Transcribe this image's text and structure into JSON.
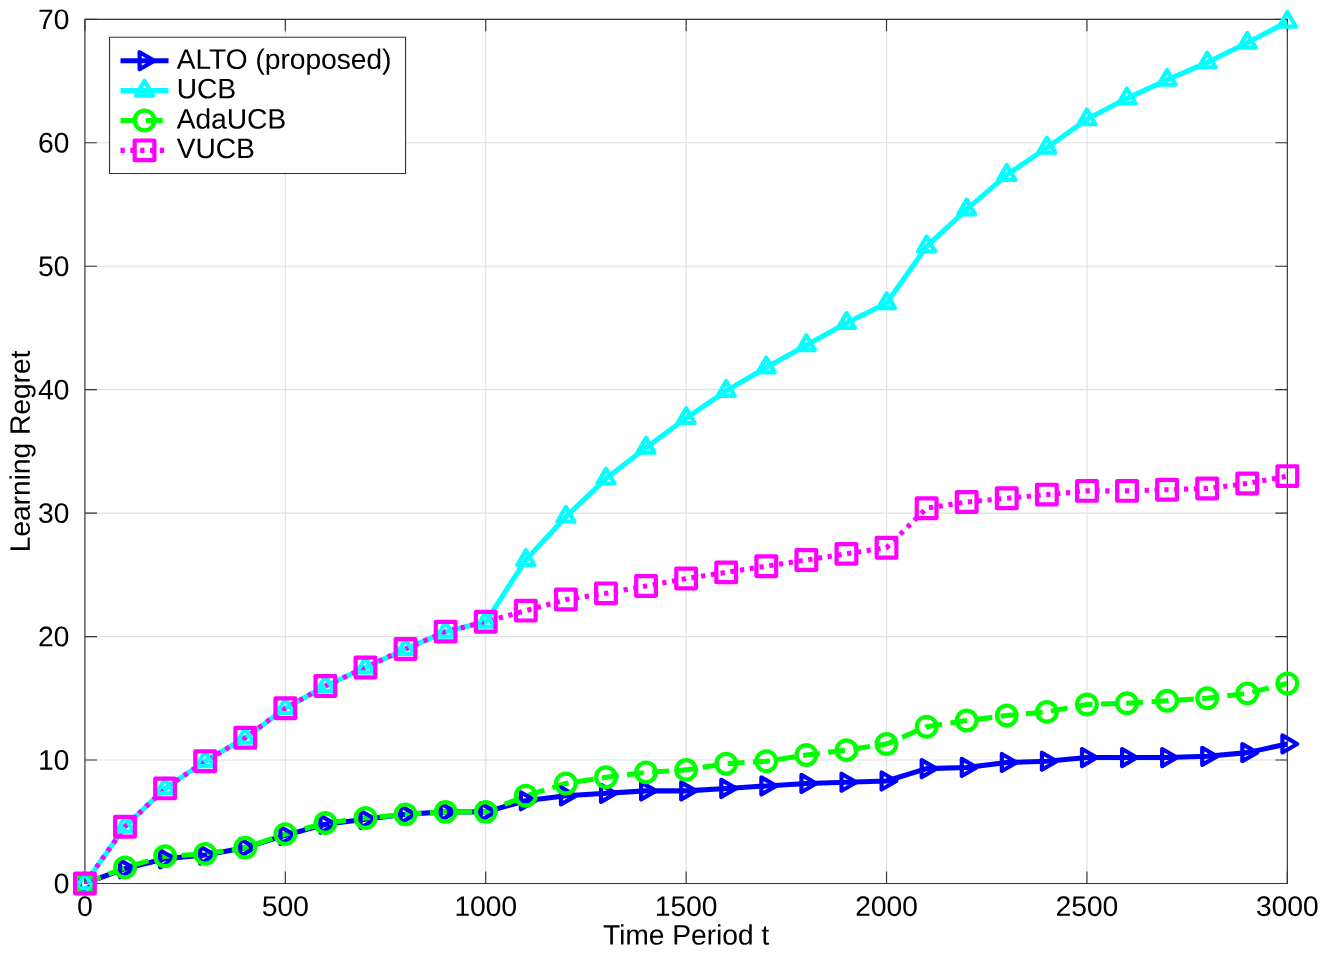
{
  "chart_data": {
    "type": "line",
    "xlabel": "Time Period t",
    "ylabel": "Learning Regret",
    "x": [
      0,
      100,
      200,
      300,
      400,
      500,
      600,
      700,
      800,
      900,
      1000,
      1100,
      1200,
      1300,
      1400,
      1500,
      1600,
      1700,
      1800,
      1900,
      2000,
      2100,
      2200,
      2300,
      2400,
      2500,
      2600,
      2700,
      2800,
      2900,
      3000
    ],
    "series": [
      {
        "name": "ALTO (proposed)",
        "color": "#0000ff",
        "marker": "triangle",
        "line_style": "solid",
        "values": [
          0,
          1.2,
          2.0,
          2.3,
          2.9,
          3.9,
          4.8,
          5.2,
          5.6,
          5.8,
          5.8,
          6.7,
          7.1,
          7.3,
          7.5,
          7.5,
          7.7,
          7.9,
          8.1,
          8.2,
          8.3,
          9.3,
          9.4,
          9.8,
          9.9,
          10.2,
          10.2,
          10.2,
          10.3,
          10.6,
          11.3
        ]
      },
      {
        "name": "UCB",
        "color": "#00ffff",
        "marker": "triangle*",
        "line_style": "solid",
        "values": [
          0,
          4.6,
          7.7,
          9.9,
          11.8,
          14.2,
          16.0,
          17.5,
          19.0,
          20.4,
          21.2,
          26.2,
          29.7,
          32.8,
          35.3,
          37.7,
          39.9,
          41.8,
          43.6,
          45.4,
          47.0,
          51.6,
          54.6,
          57.4,
          59.6,
          61.9,
          63.6,
          65.1,
          66.5,
          68.1,
          69.8
        ]
      },
      {
        "name": "AdaUCB",
        "color": "#00ff00",
        "marker": "circle",
        "line_style": "dashed",
        "values": [
          0,
          1.3,
          2.2,
          2.4,
          2.9,
          4.0,
          4.9,
          5.3,
          5.6,
          5.8,
          5.8,
          7.1,
          8.1,
          8.6,
          9.0,
          9.2,
          9.7,
          9.9,
          10.4,
          10.8,
          11.3,
          12.7,
          13.2,
          13.6,
          13.9,
          14.5,
          14.6,
          14.8,
          15.0,
          15.4,
          16.2
        ]
      },
      {
        "name": "VUCB",
        "color": "#ff00ff",
        "marker": "square",
        "line_style": "dotted",
        "values": [
          0,
          4.6,
          7.7,
          9.9,
          11.8,
          14.2,
          16.0,
          17.5,
          19.0,
          20.4,
          21.2,
          22.1,
          23.0,
          23.5,
          24.1,
          24.7,
          25.2,
          25.7,
          26.2,
          26.7,
          27.2,
          30.4,
          30.9,
          31.2,
          31.5,
          31.8,
          31.8,
          31.9,
          32.0,
          32.4,
          33.0
        ]
      }
    ],
    "xlim": [
      0,
      3000
    ],
    "ylim": [
      0,
      70
    ],
    "xticks": [
      0,
      500,
      1000,
      1500,
      2000,
      2500,
      3000
    ],
    "yticks": [
      0,
      10,
      20,
      30,
      40,
      50,
      60,
      70
    ],
    "grid": true,
    "legend": "top left"
  }
}
